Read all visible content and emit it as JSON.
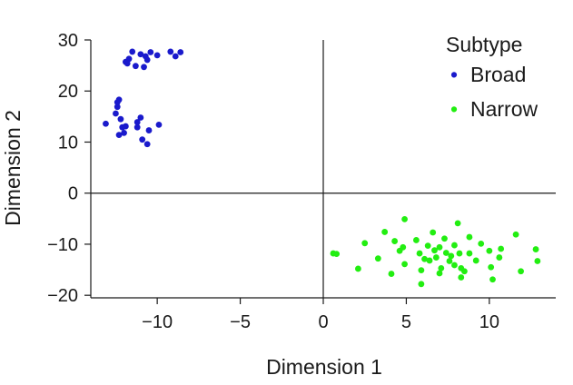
{
  "chart_data": {
    "type": "scatter",
    "xlabel": "Dimension 1",
    "ylabel": "Dimension 2",
    "xlim": [
      -14,
      14
    ],
    "ylim": [
      -20.5,
      30
    ],
    "xticks": [
      -10,
      -5,
      0,
      5,
      10
    ],
    "yticks": [
      -20,
      -10,
      0,
      10,
      20,
      30
    ],
    "xtick_labels": [
      "−10",
      "−5",
      "0",
      "5",
      "10"
    ],
    "ytick_labels": [
      "−20",
      "−10",
      "0",
      "10",
      "20",
      "30"
    ],
    "grid": false,
    "reference_lines": {
      "x": 0,
      "y": 0
    },
    "legend": {
      "title": "Subtype",
      "placement": "top-right",
      "marker_glyph": "•"
    },
    "series": [
      {
        "name": "Broad",
        "color": "#1a1acc",
        "points": [
          [
            -11.5,
            27.7
          ],
          [
            -11.0,
            27.2
          ],
          [
            -10.7,
            26.8
          ],
          [
            -10.4,
            27.6
          ],
          [
            -10.0,
            27.0
          ],
          [
            -9.2,
            27.7
          ],
          [
            -8.9,
            26.8
          ],
          [
            -8.6,
            27.6
          ],
          [
            -11.7,
            26.3
          ],
          [
            -11.8,
            25.4
          ],
          [
            -11.3,
            24.9
          ],
          [
            -10.8,
            24.7
          ],
          [
            -11.9,
            25.7
          ],
          [
            -10.6,
            26.1
          ],
          [
            -12.3,
            18.3
          ],
          [
            -12.4,
            17.8
          ],
          [
            -12.4,
            16.9
          ],
          [
            -12.5,
            15.6
          ],
          [
            -13.1,
            13.6
          ],
          [
            -12.2,
            14.5
          ],
          [
            -12.1,
            12.9
          ],
          [
            -11.9,
            13.1
          ],
          [
            -12.3,
            11.4
          ],
          [
            -12.0,
            11.8
          ],
          [
            -11.2,
            13.9
          ],
          [
            -11.0,
            14.8
          ],
          [
            -11.2,
            12.9
          ],
          [
            -10.5,
            12.3
          ],
          [
            -9.9,
            13.4
          ],
          [
            -10.9,
            10.5
          ],
          [
            -10.6,
            9.6
          ]
        ]
      },
      {
        "name": "Narrow",
        "color": "#22ee11",
        "points": [
          [
            0.6,
            -11.8
          ],
          [
            0.8,
            -11.9
          ],
          [
            2.1,
            -14.8
          ],
          [
            2.5,
            -9.8
          ],
          [
            3.3,
            -12.8
          ],
          [
            3.7,
            -7.6
          ],
          [
            4.1,
            -15.8
          ],
          [
            4.3,
            -9.4
          ],
          [
            4.6,
            -11.3
          ],
          [
            4.9,
            -5.1
          ],
          [
            4.8,
            -10.6
          ],
          [
            4.9,
            -13.9
          ],
          [
            5.6,
            -9.2
          ],
          [
            5.9,
            -15.1
          ],
          [
            5.8,
            -11.8
          ],
          [
            5.9,
            -17.8
          ],
          [
            6.1,
            -12.9
          ],
          [
            6.3,
            -10.3
          ],
          [
            6.6,
            -7.7
          ],
          [
            6.4,
            -13.2
          ],
          [
            6.7,
            -11.2
          ],
          [
            6.8,
            -12.6
          ],
          [
            7.0,
            -10.6
          ],
          [
            7.1,
            -14.7
          ],
          [
            7.0,
            -15.7
          ],
          [
            7.3,
            -8.9
          ],
          [
            7.4,
            -11.7
          ],
          [
            7.6,
            -13.3
          ],
          [
            7.7,
            -12.3
          ],
          [
            7.9,
            -14.1
          ],
          [
            7.9,
            -10.2
          ],
          [
            8.1,
            -5.9
          ],
          [
            8.2,
            -11.8
          ],
          [
            8.3,
            -16.5
          ],
          [
            8.3,
            -14.7
          ],
          [
            8.5,
            -15.3
          ],
          [
            8.8,
            -8.6
          ],
          [
            8.8,
            -11.8
          ],
          [
            9.2,
            -13.2
          ],
          [
            9.5,
            -9.9
          ],
          [
            10.0,
            -11.3
          ],
          [
            10.1,
            -14.5
          ],
          [
            10.2,
            -16.9
          ],
          [
            10.6,
            -12.6
          ],
          [
            10.7,
            -10.9
          ],
          [
            11.6,
            -8.1
          ],
          [
            11.9,
            -15.3
          ],
          [
            12.8,
            -11.0
          ],
          [
            12.9,
            -13.3
          ]
        ]
      }
    ]
  }
}
